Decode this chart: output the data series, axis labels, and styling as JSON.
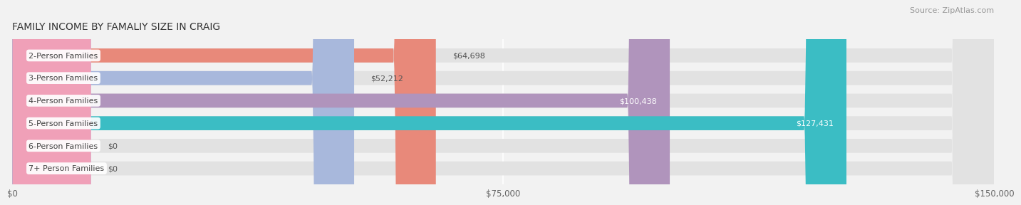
{
  "title": "FAMILY INCOME BY FAMALIY SIZE IN CRAIG",
  "source": "Source: ZipAtlas.com",
  "categories": [
    "2-Person Families",
    "3-Person Families",
    "4-Person Families",
    "5-Person Families",
    "6-Person Families",
    "7+ Person Families"
  ],
  "values": [
    64698,
    52212,
    100438,
    127431,
    0,
    0
  ],
  "bar_colors": [
    "#E8897A",
    "#A8B8DC",
    "#B094BC",
    "#3BBDC4",
    "#B0B8E8",
    "#F0A0B8"
  ],
  "value_inside": [
    false,
    false,
    true,
    true,
    false,
    false
  ],
  "xlim": [
    0,
    150000
  ],
  "xticks": [
    0,
    75000,
    150000
  ],
  "xtick_labels": [
    "$0",
    "$75,000",
    "$150,000"
  ],
  "title_fontsize": 10,
  "source_fontsize": 8,
  "label_fontsize": 8,
  "value_fontsize": 8,
  "bar_height": 0.62,
  "background_color": "#f2f2f2",
  "bar_bg_color": "#e2e2e2",
  "zero_bar_width": 12000
}
